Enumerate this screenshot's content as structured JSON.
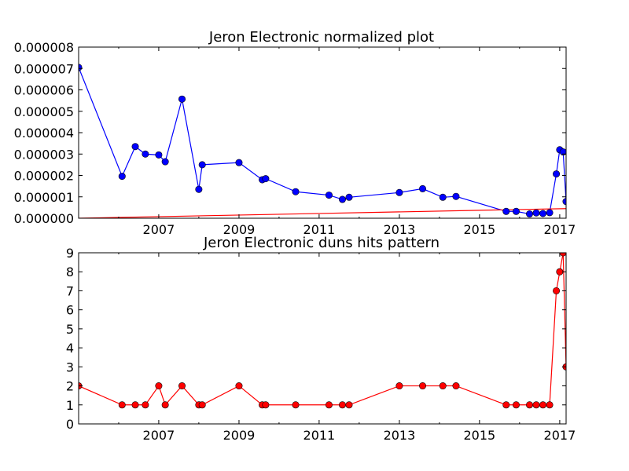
{
  "chart_data": [
    {
      "type": "line",
      "title": "Jeron Electronic normalized plot",
      "xlabel": "",
      "ylabel": "",
      "x_ticks": [
        "2007",
        "2009",
        "2011",
        "2013",
        "2015",
        "2017"
      ],
      "y_ticks": [
        "0.000000",
        "0.000001",
        "0.000002",
        "0.000003",
        "0.000004",
        "0.000005",
        "0.000006",
        "0.000007",
        "0.000008"
      ],
      "xlim": [
        "2005-01-01",
        "2017-02-28"
      ],
      "ylim": [
        0,
        8e-06
      ],
      "series": [
        {
          "color": "#0000ff",
          "marker": "circle",
          "points": [
            [
              "2005-01-01",
              7.05e-06
            ],
            [
              "2006-02-01",
              1.96e-06
            ],
            [
              "2006-06-01",
              3.35e-06
            ],
            [
              "2006-09-01",
              3e-06
            ],
            [
              "2007-01-01",
              2.96e-06
            ],
            [
              "2007-03-01",
              2.64e-06
            ],
            [
              "2007-08-01",
              5.57e-06
            ],
            [
              "2008-01-01",
              1.35e-06
            ],
            [
              "2008-02-01",
              2.5e-06
            ],
            [
              "2009-01-01",
              2.6e-06
            ],
            [
              "2009-08-01",
              1.8e-06
            ],
            [
              "2009-09-01",
              1.85e-06
            ],
            [
              "2010-06-01",
              1.24e-06
            ],
            [
              "2011-04-01",
              1.08e-06
            ],
            [
              "2011-08-01",
              8.8e-07
            ],
            [
              "2011-10-01",
              9.8e-07
            ],
            [
              "2013-01-01",
              1.2e-06
            ],
            [
              "2013-08-01",
              1.38e-06
            ],
            [
              "2014-02-01",
              9.8e-07
            ],
            [
              "2014-06-01",
              1.02e-06
            ],
            [
              "2015-09-01",
              3.2e-07
            ],
            [
              "2015-12-01",
              3.2e-07
            ],
            [
              "2016-04-01",
              2e-07
            ],
            [
              "2016-06-01",
              2.5e-07
            ],
            [
              "2016-08-01",
              2.2e-07
            ],
            [
              "2016-10-01",
              2.6e-07
            ],
            [
              "2016-12-01",
              2.07e-06
            ],
            [
              "2017-01-01",
              3.2e-06
            ],
            [
              "2017-02-01",
              3.1e-06
            ],
            [
              "2017-02-28",
              7.8e-07
            ]
          ]
        },
        {
          "color": "#ff0000",
          "marker": "none",
          "points": [
            [
              "2005-01-01",
              0.0
            ],
            [
              "2017-02-28",
              4.5e-07
            ]
          ]
        }
      ]
    },
    {
      "type": "line",
      "title": "Jeron Electronic duns hits pattern",
      "xlabel": "",
      "ylabel": "",
      "x_ticks": [
        "2007",
        "2009",
        "2011",
        "2013",
        "2015",
        "2017"
      ],
      "y_ticks": [
        "0",
        "1",
        "2",
        "3",
        "4",
        "5",
        "6",
        "7",
        "8",
        "9"
      ],
      "xlim": [
        "2005-01-01",
        "2017-02-28"
      ],
      "ylim": [
        0,
        9
      ],
      "series": [
        {
          "color": "#ff0000",
          "marker": "circle",
          "points": [
            [
              "2005-01-01",
              2
            ],
            [
              "2006-02-01",
              1
            ],
            [
              "2006-06-01",
              1
            ],
            [
              "2006-09-01",
              1
            ],
            [
              "2007-01-01",
              2
            ],
            [
              "2007-03-01",
              1
            ],
            [
              "2007-08-01",
              2
            ],
            [
              "2008-01-01",
              1
            ],
            [
              "2008-02-01",
              1
            ],
            [
              "2009-01-01",
              2
            ],
            [
              "2009-08-01",
              1
            ],
            [
              "2009-09-01",
              1
            ],
            [
              "2010-06-01",
              1
            ],
            [
              "2011-04-01",
              1
            ],
            [
              "2011-08-01",
              1
            ],
            [
              "2011-10-01",
              1
            ],
            [
              "2013-01-01",
              2
            ],
            [
              "2013-08-01",
              2
            ],
            [
              "2014-02-01",
              2
            ],
            [
              "2014-06-01",
              2
            ],
            [
              "2015-09-01",
              1
            ],
            [
              "2015-12-01",
              1
            ],
            [
              "2016-04-01",
              1
            ],
            [
              "2016-06-01",
              1
            ],
            [
              "2016-08-01",
              1
            ],
            [
              "2016-10-01",
              1
            ],
            [
              "2016-12-01",
              7
            ],
            [
              "2017-01-01",
              8
            ],
            [
              "2017-02-01",
              9
            ],
            [
              "2017-02-28",
              3
            ]
          ]
        }
      ]
    }
  ]
}
